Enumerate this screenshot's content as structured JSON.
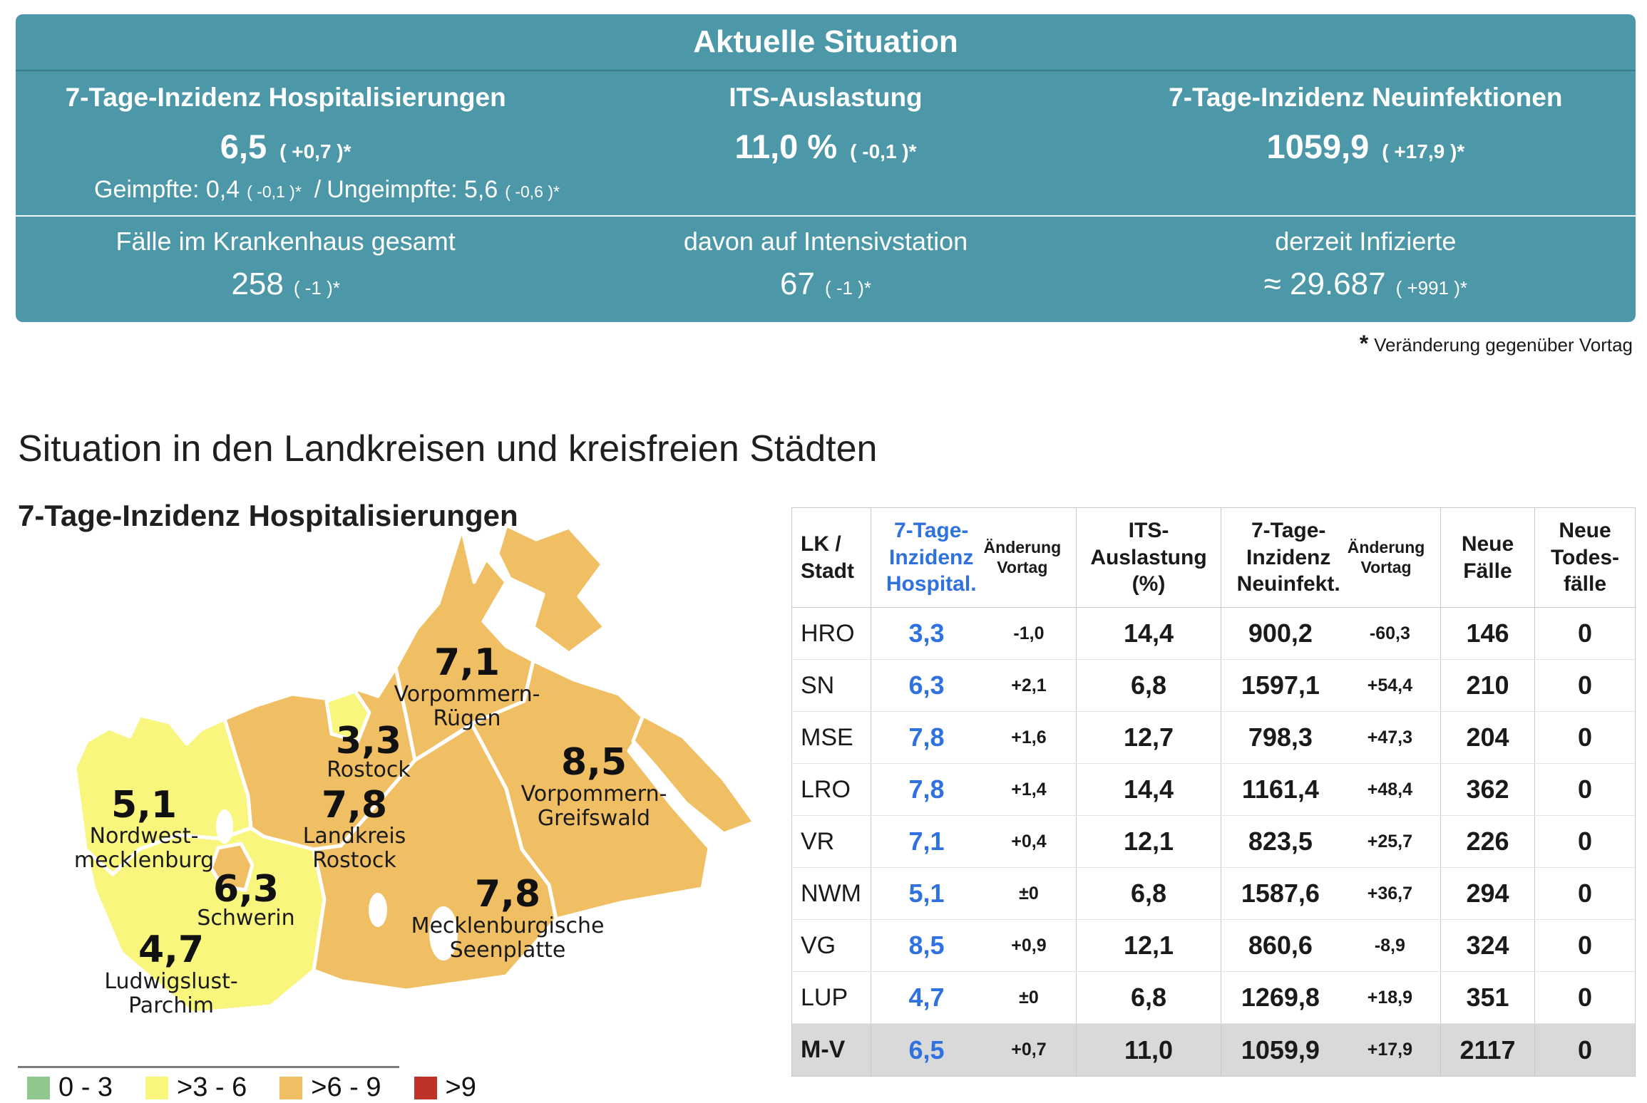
{
  "colors": {
    "teal": "#4d98a8",
    "blue": "#2e71df",
    "orange": "#f1bf63",
    "yellow": "#f8f67d",
    "green": "#90c78f",
    "red": "#bf3229",
    "totalbg": "#d9d9d9"
  },
  "panel": {
    "title": "Aktuelle Situation",
    "stats": [
      {
        "label": "7-Tage-Inzidenz Hospitalisierungen",
        "value": "6,5",
        "change": "( +0,7 )*"
      },
      {
        "label": "ITS-Auslastung",
        "value": "11,0 %",
        "change": "( -0,1 )*"
      },
      {
        "label": "7-Tage-Inzidenz Neuinfektionen",
        "value": "1059,9",
        "change": "( +17,9 )*"
      }
    ],
    "vacc": {
      "part1": "Geimpfte: 0,4",
      "change1": "( -0,1 )*",
      "sep": "/",
      "part2": "Ungeimpfte: 5,6",
      "change2": "( -0,6 )*"
    },
    "stats2": [
      {
        "label": "Fälle im Krankenhaus gesamt",
        "value": "258",
        "change": "( -1 )*"
      },
      {
        "label": "davon auf Intensivstation",
        "value": "67",
        "change": "( -1 )*"
      },
      {
        "label": "derzeit Infizierte",
        "value": "≈ 29.687",
        "change": "( +991 )*"
      }
    ],
    "footnote_star": "*",
    "footnote_text": "Veränderung gegenüber Vortag"
  },
  "section": {
    "title": "Situation in den Landkreisen und kreisfreien Städten",
    "map_title": "7-Tage-Inzidenz Hospitalisierungen"
  },
  "map": {
    "regions": [
      {
        "id": "vorpommern-ruegen",
        "value": "7,1",
        "line1": "Vorpommern-",
        "line2": "Rügen"
      },
      {
        "id": "rostock-stadt",
        "value": "3,3",
        "line1": "Rostock",
        "line2": ""
      },
      {
        "id": "vorpommern-greifswald",
        "value": "8,5",
        "line1": "Vorpommern-",
        "line2": "Greifswald"
      },
      {
        "id": "nordwestmecklenburg",
        "value": "5,1",
        "line1": "Nordwest-",
        "line2": "mecklenburg"
      },
      {
        "id": "landkreis-rostock",
        "value": "7,8",
        "line1": "Landkreis",
        "line2": "Rostock"
      },
      {
        "id": "schwerin",
        "value": "6,3",
        "line1": "Schwerin",
        "line2": ""
      },
      {
        "id": "mecklenburgische-seenplatte",
        "value": "7,8",
        "line1": "Mecklenburgische",
        "line2": "Seenplatte"
      },
      {
        "id": "ludwigslust-parchim",
        "value": "4,7",
        "line1": "Ludwigslust-",
        "line2": "Parchim"
      }
    ],
    "legend": [
      {
        "label": "0 - 3",
        "color": "#90c78f"
      },
      {
        "label": ">3 - 6",
        "color": "#f8f67d"
      },
      {
        "label": ">6 - 9",
        "color": "#f1bf63"
      },
      {
        "label": ">9",
        "color": "#bf3229"
      }
    ]
  },
  "table": {
    "header": {
      "col1_l1": "LK /",
      "col1_l2": "Stadt",
      "col2_l1": "7-Tage-",
      "col2_l2": "Inzidenz",
      "col2_l3": "Hospital.",
      "chg_l1": "Änderung",
      "chg_l2": "Vortag",
      "col3_l1": "ITS-",
      "col3_l2": "Auslastung",
      "col3_l3": "(%)",
      "col4_l1": "7-Tage-",
      "col4_l2": "Inzidenz",
      "col4_l3": "Neuinfekt.",
      "col5_l1": "Neue",
      "col5_l2": "Fälle",
      "col6_l1": "Neue",
      "col6_l2": "Todes-",
      "col6_l3": "fälle"
    },
    "rows": [
      {
        "code": "HRO",
        "hosp": "3,3",
        "hosp_chg": "-1,0",
        "its": "14,4",
        "inz": "900,2",
        "inz_chg": "-60,3",
        "cases": "146",
        "deaths": "0",
        "total": false
      },
      {
        "code": "SN",
        "hosp": "6,3",
        "hosp_chg": "+2,1",
        "its": "6,8",
        "inz": "1597,1",
        "inz_chg": "+54,4",
        "cases": "210",
        "deaths": "0",
        "total": false
      },
      {
        "code": "MSE",
        "hosp": "7,8",
        "hosp_chg": "+1,6",
        "its": "12,7",
        "inz": "798,3",
        "inz_chg": "+47,3",
        "cases": "204",
        "deaths": "0",
        "total": false
      },
      {
        "code": "LRO",
        "hosp": "7,8",
        "hosp_chg": "+1,4",
        "its": "14,4",
        "inz": "1161,4",
        "inz_chg": "+48,4",
        "cases": "362",
        "deaths": "0",
        "total": false
      },
      {
        "code": "VR",
        "hosp": "7,1",
        "hosp_chg": "+0,4",
        "its": "12,1",
        "inz": "823,5",
        "inz_chg": "+25,7",
        "cases": "226",
        "deaths": "0",
        "total": false
      },
      {
        "code": "NWM",
        "hosp": "5,1",
        "hosp_chg": "±0",
        "its": "6,8",
        "inz": "1587,6",
        "inz_chg": "+36,7",
        "cases": "294",
        "deaths": "0",
        "total": false
      },
      {
        "code": "VG",
        "hosp": "8,5",
        "hosp_chg": "+0,9",
        "its": "12,1",
        "inz": "860,6",
        "inz_chg": "-8,9",
        "cases": "324",
        "deaths": "0",
        "total": false
      },
      {
        "code": "LUP",
        "hosp": "4,7",
        "hosp_chg": "±0",
        "its": "6,8",
        "inz": "1269,8",
        "inz_chg": "+18,9",
        "cases": "351",
        "deaths": "0",
        "total": false
      },
      {
        "code": "M-V",
        "hosp": "6,5",
        "hosp_chg": "+0,7",
        "its": "11,0",
        "inz": "1059,9",
        "inz_chg": "+17,9",
        "cases": "2117",
        "deaths": "0",
        "total": true
      }
    ]
  },
  "chart_data": [
    {
      "type": "choropleth-map",
      "title": "7-Tage-Inzidenz Hospitalisierungen",
      "regions": [
        {
          "name": "Vorpommern-Rügen",
          "value": 7.1,
          "bin": ">6 - 9"
        },
        {
          "name": "Rostock",
          "value": 3.3,
          "bin": ">3 - 6"
        },
        {
          "name": "Vorpommern-Greifswald",
          "value": 8.5,
          "bin": ">6 - 9"
        },
        {
          "name": "Nordwestmecklenburg",
          "value": 5.1,
          "bin": ">3 - 6"
        },
        {
          "name": "Landkreis Rostock",
          "value": 7.8,
          "bin": ">6 - 9"
        },
        {
          "name": "Schwerin",
          "value": 6.3,
          "bin": ">6 - 9"
        },
        {
          "name": "Mecklenburgische Seenplatte",
          "value": 7.8,
          "bin": ">6 - 9"
        },
        {
          "name": "Ludwigslust-Parchim",
          "value": 4.7,
          "bin": ">3 - 6"
        }
      ],
      "legend_bins": [
        {
          "range": "0 - 3",
          "color": "#90c78f"
        },
        {
          "range": ">3 - 6",
          "color": "#f8f67d"
        },
        {
          "range": ">6 - 9",
          "color": "#f1bf63"
        },
        {
          "range": ">9",
          "color": "#bf3229"
        }
      ]
    },
    {
      "type": "table",
      "columns": [
        "LK / Stadt",
        "7-Tage-Inzidenz Hospital.",
        "Änderung Vortag",
        "ITS-Auslastung (%)",
        "7-Tage-Inzidenz Neuinfekt.",
        "Änderung Vortag",
        "Neue Fälle",
        "Neue Todesfälle"
      ],
      "rows": [
        [
          "HRO",
          "3,3",
          "-1,0",
          "14,4",
          "900,2",
          "-60,3",
          "146",
          "0"
        ],
        [
          "SN",
          "6,3",
          "+2,1",
          "6,8",
          "1597,1",
          "+54,4",
          "210",
          "0"
        ],
        [
          "MSE",
          "7,8",
          "+1,6",
          "12,7",
          "798,3",
          "+47,3",
          "204",
          "0"
        ],
        [
          "LRO",
          "7,8",
          "+1,4",
          "14,4",
          "1161,4",
          "+48,4",
          "362",
          "0"
        ],
        [
          "VR",
          "7,1",
          "+0,4",
          "12,1",
          "823,5",
          "+25,7",
          "226",
          "0"
        ],
        [
          "NWM",
          "5,1",
          "±0",
          "6,8",
          "1587,6",
          "+36,7",
          "294",
          "0"
        ],
        [
          "VG",
          "8,5",
          "+0,9",
          "12,1",
          "860,6",
          "-8,9",
          "324",
          "0"
        ],
        [
          "LUP",
          "4,7",
          "±0",
          "6,8",
          "1269,8",
          "+18,9",
          "351",
          "0"
        ],
        [
          "M-V",
          "6,5",
          "+0,7",
          "11,0",
          "1059,9",
          "+17,9",
          "2117",
          "0"
        ]
      ]
    },
    {
      "type": "kpi",
      "items": [
        {
          "label": "7-Tage-Inzidenz Hospitalisierungen",
          "value": "6,5",
          "change": "+0,7"
        },
        {
          "label": "Geimpfte",
          "value": "0,4",
          "change": "-0,1"
        },
        {
          "label": "Ungeimpfte",
          "value": "5,6",
          "change": "-0,6"
        },
        {
          "label": "ITS-Auslastung",
          "value": "11,0 %",
          "change": "-0,1"
        },
        {
          "label": "7-Tage-Inzidenz Neuinfektionen",
          "value": "1059,9",
          "change": "+17,9"
        },
        {
          "label": "Fälle im Krankenhaus gesamt",
          "value": "258",
          "change": "-1"
        },
        {
          "label": "davon auf Intensivstation",
          "value": "67",
          "change": "-1"
        },
        {
          "label": "derzeit Infizierte",
          "value": "≈ 29.687",
          "change": "+991"
        }
      ]
    }
  ]
}
